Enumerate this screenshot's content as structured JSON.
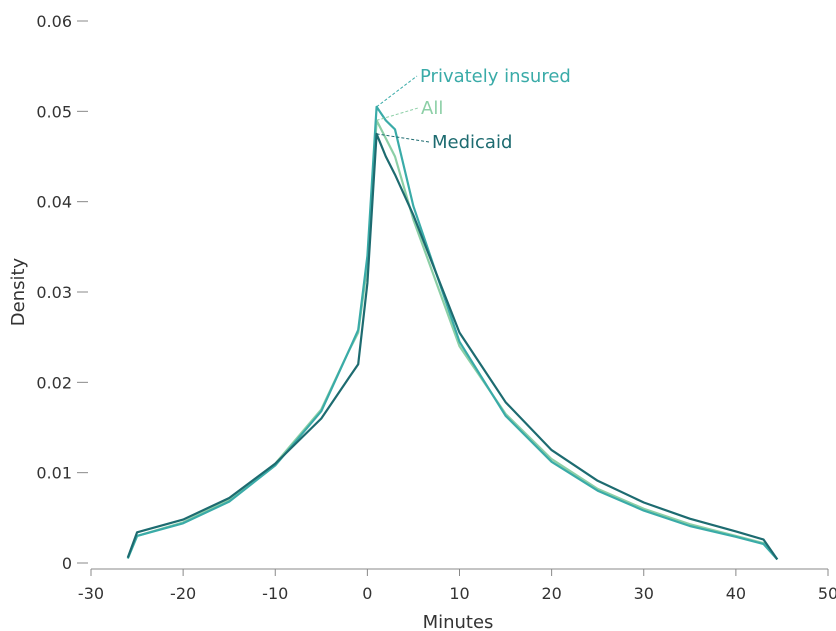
{
  "chart_data": {
    "type": "line",
    "title": "",
    "xlabel": "Minutes",
    "ylabel": "Density",
    "xlim": [
      -30,
      50
    ],
    "ylim": [
      0,
      0.06
    ],
    "x_ticks": [
      -30,
      -20,
      -10,
      0,
      10,
      20,
      30,
      40,
      50
    ],
    "x_tick_labels": [
      "-30",
      "-20",
      "-10",
      "0",
      "10",
      "20",
      "30",
      "40",
      "50"
    ],
    "y_ticks": [
      0,
      0.01,
      0.02,
      0.03,
      0.04,
      0.05,
      0.06
    ],
    "y_tick_labels": [
      "0",
      "0.01",
      "0.02",
      "0.03",
      "0.04",
      "0.05",
      "0.06"
    ],
    "grid": false,
    "legend": "direct labels near peak",
    "series": [
      {
        "name": "All",
        "color": "#8ccfa6",
        "x": [
          -26,
          -25,
          -20,
          -15,
          -10,
          -5,
          -2,
          -1,
          0,
          1,
          2,
          3,
          5,
          10,
          15,
          20,
          25,
          30,
          35,
          40,
          43,
          44.5
        ],
        "y": [
          0.0005,
          0.003,
          0.0045,
          0.007,
          0.011,
          0.017,
          0.0235,
          0.0255,
          0.033,
          0.049,
          0.047,
          0.045,
          0.038,
          0.024,
          0.0165,
          0.0115,
          0.0082,
          0.006,
          0.0043,
          0.003,
          0.0022,
          0.0004
        ]
      },
      {
        "name": "Privately insured",
        "color": "#3aaba8",
        "x": [
          -26,
          -25,
          -20,
          -15,
          -10,
          -5,
          -2,
          -1,
          0,
          1,
          2,
          3,
          5,
          10,
          15,
          20,
          25,
          30,
          35,
          40,
          43,
          44.5
        ],
        "y": [
          0.0005,
          0.003,
          0.0044,
          0.0068,
          0.0108,
          0.0168,
          0.0235,
          0.0258,
          0.034,
          0.0505,
          0.049,
          0.048,
          0.0395,
          0.0245,
          0.0163,
          0.0112,
          0.008,
          0.0058,
          0.0041,
          0.0029,
          0.0021,
          0.0004
        ]
      },
      {
        "name": "Medicaid",
        "color": "#1d6b70",
        "x": [
          -26,
          -25,
          -20,
          -15,
          -10,
          -5,
          -2,
          -1,
          0,
          1,
          2,
          3,
          5,
          10,
          15,
          20,
          25,
          30,
          35,
          40,
          43,
          44.5
        ],
        "y": [
          0.0006,
          0.0034,
          0.0048,
          0.0072,
          0.011,
          0.016,
          0.0205,
          0.022,
          0.031,
          0.0475,
          0.045,
          0.043,
          0.0385,
          0.0255,
          0.0178,
          0.0125,
          0.0091,
          0.0067,
          0.0049,
          0.0035,
          0.0026,
          0.0004
        ]
      }
    ]
  }
}
